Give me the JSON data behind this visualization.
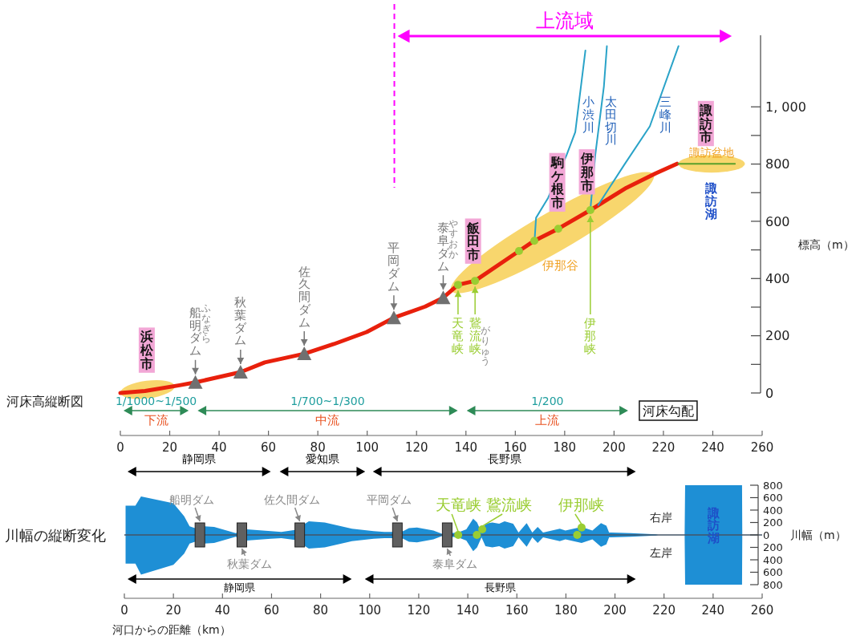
{
  "chart_data": [
    {
      "type": "line",
      "title": "河床高縦断図",
      "ylabel": "標高（m）",
      "xlim": [
        0,
        260
      ],
      "xticks": [
        0,
        20,
        40,
        60,
        80,
        100,
        120,
        140,
        160,
        180,
        200,
        220,
        240,
        260
      ],
      "ylim": [
        0,
        1250
      ],
      "yticks": [
        0,
        {
          "value": 100,
          "label": null
        },
        200,
        {
          "value": 300,
          "label": null
        },
        400,
        {
          "value": 500,
          "label": null
        },
        600,
        {
          "value": 700,
          "label": null
        },
        800,
        {
          "value": 900,
          "label": null
        },
        {
          "value": 1000,
          "label": "1, 000"
        }
      ],
      "series": [
        {
          "color": "#e8200c",
          "x": [
            0,
            10,
            24,
            30.4,
            48.7,
            58.5,
            74.5,
            86.5,
            99.8,
            110.8,
            123.5,
            130.8,
            136.8,
            143.7,
            161.5,
            167.7,
            177.4,
            190.4,
            205,
            216.8,
            225.5
          ],
          "values": [
            0,
            7,
            27,
            37,
            73,
            107,
            137,
            171,
            213,
            263,
            302,
            333,
            378,
            392,
            496,
            532,
            574,
            639,
            717,
            767,
            801
          ]
        },
        {
          "name": "小渋川",
          "color": "#2aa3c8",
          "x": [
            167.8,
            168.4,
            173.3,
            180.8,
            184.3,
            188.4
          ],
          "values": [
            532,
            612,
            682,
            832,
            912,
            1197
          ]
        },
        {
          "name": "太田切川",
          "color": "#2aa3c8",
          "x": [
            190.4,
            192.4,
            195.9,
            197.1
          ],
          "values": [
            639,
            832,
            1072,
            1212
          ]
        },
        {
          "name": "三峰川",
          "color": "#2aa3c8",
          "x": [
            193.6,
            204.1,
            214.5,
            226.1
          ],
          "values": [
            657,
            797,
            932,
            1212
          ]
        },
        {
          "color": "#5aa02c",
          "x": [
            226,
            249
          ],
          "values": [
            801,
            801
          ]
        },
        {
          "type": "scatter",
          "marker": "triangle",
          "color": "#707070",
          "x": [
            30.4,
            48.7,
            74.5,
            110.8,
            130.8
          ],
          "values": [
            37,
            73,
            137,
            263,
            333
          ]
        },
        {
          "type": "scatter",
          "marker": "circle",
          "color": "#9acd32",
          "x": [
            136.8,
            143.7,
            161.5,
            167.7,
            177.4,
            190.4
          ],
          "values": [
            378,
            392,
            496,
            532,
            574,
            639
          ]
        }
      ],
      "ref_lines": [
        {
          "axis": "x",
          "value": 111,
          "color": "#ff00ff",
          "line_style": "dashed"
        }
      ],
      "annotations": [
        {
          "text": "浜松市",
          "x": 10.7,
          "y": 9
        },
        {
          "text": "船明ダム",
          "x": 30.4,
          "y": 37
        },
        {
          "text": "秋葉ダム",
          "x": 48.7,
          "y": 73
        },
        {
          "text": "佐久間ダム",
          "x": 74.5,
          "y": 137
        },
        {
          "text": "平岡ダム",
          "x": 110.8,
          "y": 263
        },
        {
          "text": "泰阜ダム",
          "x": 130.8,
          "y": 333
        },
        {
          "text": "飯田市",
          "x": 142.9,
          "y": 390
        },
        {
          "text": "天竜峡",
          "x": 136.8,
          "y": 378
        },
        {
          "text": "鵞流峡",
          "x": 143.7,
          "y": 392
        },
        {
          "text": "駒ケ根市",
          "x": 177,
          "y": 572
        },
        {
          "text": "伊那市",
          "x": 189,
          "y": 632
        },
        {
          "text": "伊那峡",
          "x": 190.4,
          "y": 639
        },
        {
          "text": "諏訪市",
          "x": 237.2,
          "y": 801
        },
        "ふなぎら",
        "やすおか",
        "がりゅう",
        "伊那谷",
        "諏訪盆地",
        "諏訪湖",
        "上流域",
        "下流",
        "中流",
        "上流",
        "1/1000~1/500",
        "1/700~1/300",
        "1/200",
        "河床勾配"
      ]
    },
    {
      "type": "area",
      "title": "川幅の縦断変化",
      "xlabel": "河口からの距離（km）",
      "ylabel": "川幅（m）",
      "xlim": [
        0,
        260
      ],
      "xticks": [
        0,
        20,
        40,
        60,
        80,
        100,
        120,
        140,
        160,
        180,
        200,
        220,
        240,
        260
      ],
      "ylim": [
        -800,
        800
      ],
      "yticks": [
        {
          "value": -800,
          "label": "800"
        },
        {
          "value": -600,
          "label": "600"
        },
        {
          "value": -400,
          "label": "400"
        },
        {
          "value": -200,
          "label": "200"
        },
        0,
        200,
        400,
        600,
        800
      ],
      "series": [
        {
          "name": "右岸",
          "color": "#1e8fd5",
          "x": [
            0.5,
            4.5,
            6.8,
            20,
            24.4,
            26.6,
            28.8,
            32.7,
            36.6,
            45.4,
            49.8,
            59.7,
            64,
            69.6,
            75.2,
            81.7,
            92.8,
            101.6,
            106,
            109.4,
            113.7,
            116,
            119.3,
            126,
            129.4,
            136,
            139.4,
            142.2,
            143.8,
            145.6,
            147.2,
            150,
            152.8,
            155,
            158.5,
            160.7,
            164,
            166.3,
            168.5,
            170.7,
            177.5,
            179.8,
            186.4,
            190.8,
            194.3,
            196.5,
            197.6,
            206.5,
            216.7,
            217.6,
            228.4,
            228.6,
            251.8,
            251.9
          ],
          "values": [
            470,
            470,
            620,
            510,
            300,
            140,
            110,
            140,
            130,
            30,
            90,
            60,
            50,
            80,
            220,
            200,
            100,
            60,
            50,
            50,
            60,
            110,
            120,
            70,
            20,
            40,
            90,
            260,
            200,
            40,
            180,
            200,
            180,
            220,
            180,
            40,
            190,
            40,
            130,
            40,
            100,
            70,
            130,
            70,
            190,
            150,
            40,
            30,
            10,
            0,
            0,
            800,
            800,
            0
          ]
        },
        {
          "name": "左岸",
          "color": "#1e8fd5",
          "x": [
            0.5,
            4.5,
            6.8,
            20,
            24.4,
            26.6,
            28.8,
            32.7,
            36.6,
            45.4,
            49.8,
            59.7,
            64,
            69.6,
            75.2,
            81.7,
            92.8,
            101.6,
            106,
            109.4,
            113.7,
            116,
            119.3,
            126,
            129.4,
            136,
            139.4,
            142.2,
            143.8,
            145.6,
            147.2,
            150,
            152.8,
            155,
            158.5,
            160.7,
            164,
            166.3,
            168.5,
            170.7,
            177.5,
            179.8,
            186.4,
            190.8,
            194.3,
            196.5,
            197.6,
            206.5,
            216.7,
            217.6,
            228.4,
            228.6,
            251.8,
            251.9
          ],
          "values": [
            -460,
            -460,
            -640,
            -480,
            -300,
            -140,
            -110,
            -140,
            -130,
            -30,
            -90,
            -60,
            -50,
            -80,
            -220,
            -200,
            -100,
            -60,
            -50,
            -50,
            -60,
            -110,
            -120,
            -70,
            -20,
            -40,
            -90,
            -260,
            -200,
            -40,
            -180,
            -200,
            -180,
            -220,
            -180,
            -40,
            -190,
            -40,
            -130,
            -40,
            -100,
            -70,
            -130,
            -70,
            -190,
            -150,
            -40,
            -30,
            -10,
            0,
            0,
            -800,
            -800,
            0
          ]
        },
        {
          "type": "scatter",
          "marker": "square",
          "color": "#606060",
          "x": [
            30.8,
            47.9,
            71.5,
            111.3,
            131.6
          ],
          "values": [
            0,
            0,
            0,
            0,
            0
          ]
        },
        {
          "type": "scatter",
          "marker": "circle",
          "color": "#9acd32",
          "x": [
            136.1,
            143.7,
            145.9,
            184.6,
            186.4
          ],
          "values": [
            0,
            0,
            90,
            0,
            120
          ]
        }
      ],
      "ref_lines": [
        {
          "axis": "y",
          "value": 0,
          "color": "#445566"
        }
      ],
      "annotations": [
        {
          "text": "天竜峡",
          "x": 136.1,
          "y": 0
        },
        {
          "text": "鵞流峡",
          "x": 145.9,
          "y": 90
        },
        {
          "text": "伊那峡",
          "x": 186.4,
          "y": 120
        },
        {
          "text": "船明ダム",
          "x": 30.8,
          "y": 0
        },
        {
          "text": "秋葉ダム",
          "x": 47.9,
          "y": 0
        },
        {
          "text": "佐久間ダム",
          "x": 71.5,
          "y": 0
        },
        {
          "text": "平岡ダム",
          "x": 111.3,
          "y": 0
        },
        {
          "text": "泰阜ダム",
          "x": 131.6,
          "y": 0
        },
        "静岡県",
        "愛知県",
        "長野県",
        "静岡県",
        "長野県",
        "諏訪湖"
      ]
    }
  ]
}
